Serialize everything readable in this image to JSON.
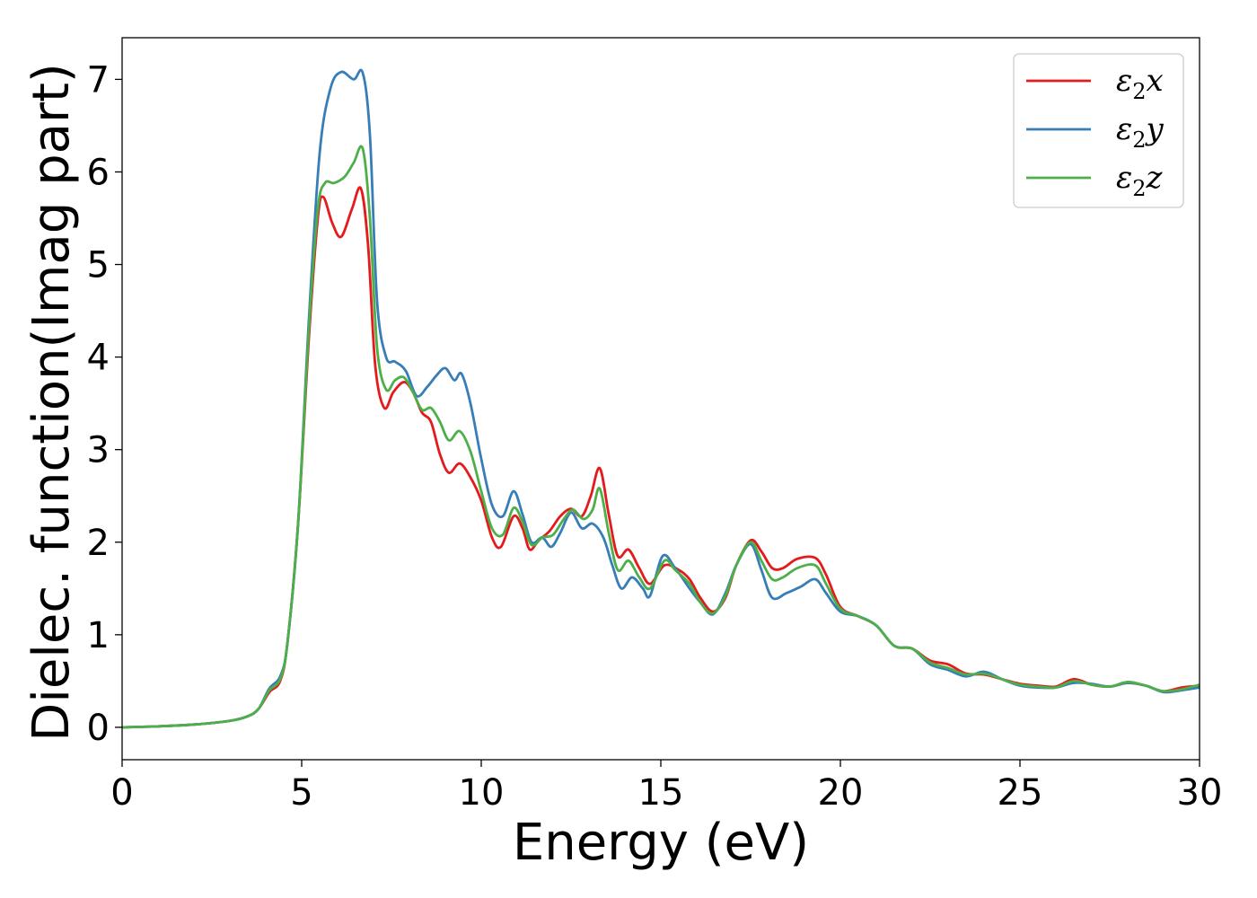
{
  "chart_data": {
    "type": "line",
    "xlabel": "Energy (eV)",
    "ylabel": "Dielec. function(Imag part)",
    "xlim": [
      0,
      30
    ],
    "ylim": [
      -0.35,
      7.45
    ],
    "xticks": [
      0,
      5,
      10,
      15,
      20,
      25,
      30
    ],
    "yticks": [
      0,
      1,
      2,
      3,
      4,
      5,
      6,
      7
    ],
    "xtick_labels": [
      "0",
      "5",
      "10",
      "15",
      "20",
      "25",
      "30"
    ],
    "ytick_labels": [
      "0",
      "1",
      "2",
      "3",
      "4",
      "5",
      "6",
      "7"
    ],
    "grid": false,
    "legend_position": "top-right",
    "series": [
      {
        "name": "ε₂x",
        "legend": {
          "base": "ε",
          "sub": "2",
          "suffix": "x"
        },
        "color": "#e41a1c",
        "points": [
          [
            0,
            0
          ],
          [
            1,
            0.01
          ],
          [
            2,
            0.03
          ],
          [
            3,
            0.07
          ],
          [
            3.5,
            0.12
          ],
          [
            3.8,
            0.2
          ],
          [
            4.1,
            0.38
          ],
          [
            4.4,
            0.5
          ],
          [
            4.6,
            0.9
          ],
          [
            4.9,
            2.2
          ],
          [
            5.2,
            4.2
          ],
          [
            5.45,
            5.5
          ],
          [
            5.6,
            5.73
          ],
          [
            5.85,
            5.45
          ],
          [
            6.1,
            5.3
          ],
          [
            6.4,
            5.6
          ],
          [
            6.65,
            5.82
          ],
          [
            6.85,
            5.2
          ],
          [
            7.05,
            3.9
          ],
          [
            7.3,
            3.45
          ],
          [
            7.55,
            3.62
          ],
          [
            7.85,
            3.73
          ],
          [
            8.1,
            3.62
          ],
          [
            8.35,
            3.4
          ],
          [
            8.6,
            3.3
          ],
          [
            8.85,
            2.95
          ],
          [
            9.1,
            2.75
          ],
          [
            9.4,
            2.85
          ],
          [
            9.7,
            2.7
          ],
          [
            10,
            2.45
          ],
          [
            10.3,
            2.05
          ],
          [
            10.55,
            1.95
          ],
          [
            10.9,
            2.28
          ],
          [
            11.15,
            2.15
          ],
          [
            11.35,
            1.92
          ],
          [
            11.6,
            2.02
          ],
          [
            11.9,
            2.12
          ],
          [
            12.2,
            2.28
          ],
          [
            12.5,
            2.36
          ],
          [
            12.8,
            2.28
          ],
          [
            13.05,
            2.5
          ],
          [
            13.3,
            2.8
          ],
          [
            13.55,
            2.3
          ],
          [
            13.8,
            1.85
          ],
          [
            14.1,
            1.92
          ],
          [
            14.4,
            1.72
          ],
          [
            14.7,
            1.55
          ],
          [
            15.1,
            1.75
          ],
          [
            15.5,
            1.7
          ],
          [
            15.8,
            1.6
          ],
          [
            16.1,
            1.4
          ],
          [
            16.45,
            1.25
          ],
          [
            16.8,
            1.4
          ],
          [
            17.1,
            1.75
          ],
          [
            17.5,
            2.02
          ],
          [
            17.8,
            1.9
          ],
          [
            18.1,
            1.72
          ],
          [
            18.4,
            1.72
          ],
          [
            18.8,
            1.82
          ],
          [
            19.3,
            1.83
          ],
          [
            19.6,
            1.65
          ],
          [
            20,
            1.3
          ],
          [
            20.5,
            1.2
          ],
          [
            21,
            1.1
          ],
          [
            21.5,
            0.88
          ],
          [
            22,
            0.85
          ],
          [
            22.5,
            0.72
          ],
          [
            23,
            0.68
          ],
          [
            23.5,
            0.58
          ],
          [
            24,
            0.57
          ],
          [
            24.5,
            0.52
          ],
          [
            25,
            0.47
          ],
          [
            25.5,
            0.45
          ],
          [
            26,
            0.44
          ],
          [
            26.5,
            0.52
          ],
          [
            27,
            0.46
          ],
          [
            27.5,
            0.44
          ],
          [
            28,
            0.48
          ],
          [
            28.5,
            0.45
          ],
          [
            29,
            0.39
          ],
          [
            29.5,
            0.43
          ],
          [
            30,
            0.45
          ]
        ]
      },
      {
        "name": "ε₂y",
        "legend": {
          "base": "ε",
          "sub": "2",
          "suffix": "y"
        },
        "color": "#377eb8",
        "points": [
          [
            0,
            0
          ],
          [
            1,
            0.01
          ],
          [
            2,
            0.03
          ],
          [
            3,
            0.07
          ],
          [
            3.5,
            0.12
          ],
          [
            3.8,
            0.2
          ],
          [
            4.1,
            0.42
          ],
          [
            4.4,
            0.55
          ],
          [
            4.6,
            0.9
          ],
          [
            4.9,
            2.2
          ],
          [
            5.2,
            4.4
          ],
          [
            5.5,
            6.2
          ],
          [
            5.8,
            6.9
          ],
          [
            6.1,
            7.08
          ],
          [
            6.45,
            7.0
          ],
          [
            6.7,
            7.07
          ],
          [
            6.9,
            6.4
          ],
          [
            7.1,
            4.6
          ],
          [
            7.35,
            4.0
          ],
          [
            7.6,
            3.95
          ],
          [
            7.9,
            3.85
          ],
          [
            8.2,
            3.58
          ],
          [
            8.5,
            3.68
          ],
          [
            8.75,
            3.8
          ],
          [
            9.0,
            3.88
          ],
          [
            9.25,
            3.75
          ],
          [
            9.45,
            3.82
          ],
          [
            9.7,
            3.5
          ],
          [
            10,
            2.9
          ],
          [
            10.3,
            2.4
          ],
          [
            10.6,
            2.28
          ],
          [
            10.9,
            2.55
          ],
          [
            11.15,
            2.3
          ],
          [
            11.4,
            2.0
          ],
          [
            11.7,
            2.05
          ],
          [
            11.95,
            1.95
          ],
          [
            12.2,
            2.1
          ],
          [
            12.5,
            2.32
          ],
          [
            12.8,
            2.15
          ],
          [
            13.1,
            2.2
          ],
          [
            13.4,
            2.05
          ],
          [
            13.65,
            1.75
          ],
          [
            13.9,
            1.5
          ],
          [
            14.2,
            1.62
          ],
          [
            14.5,
            1.5
          ],
          [
            14.7,
            1.42
          ],
          [
            15.05,
            1.85
          ],
          [
            15.4,
            1.72
          ],
          [
            15.8,
            1.5
          ],
          [
            16.1,
            1.35
          ],
          [
            16.45,
            1.22
          ],
          [
            16.8,
            1.45
          ],
          [
            17.1,
            1.75
          ],
          [
            17.5,
            1.98
          ],
          [
            17.8,
            1.7
          ],
          [
            18.1,
            1.4
          ],
          [
            18.5,
            1.45
          ],
          [
            18.9,
            1.52
          ],
          [
            19.3,
            1.6
          ],
          [
            19.6,
            1.45
          ],
          [
            20,
            1.25
          ],
          [
            20.5,
            1.2
          ],
          [
            21,
            1.1
          ],
          [
            21.5,
            0.88
          ],
          [
            22,
            0.85
          ],
          [
            22.5,
            0.68
          ],
          [
            23,
            0.62
          ],
          [
            23.5,
            0.55
          ],
          [
            24,
            0.6
          ],
          [
            24.5,
            0.52
          ],
          [
            25,
            0.45
          ],
          [
            25.5,
            0.43
          ],
          [
            26,
            0.43
          ],
          [
            26.5,
            0.48
          ],
          [
            27,
            0.47
          ],
          [
            27.5,
            0.44
          ],
          [
            28,
            0.48
          ],
          [
            28.5,
            0.45
          ],
          [
            29,
            0.38
          ],
          [
            29.5,
            0.4
          ],
          [
            30,
            0.43
          ]
        ]
      },
      {
        "name": "ε₂z",
        "legend": {
          "base": "ε",
          "sub": "2",
          "suffix": "z"
        },
        "color": "#4daf4a",
        "points": [
          [
            0,
            0
          ],
          [
            1,
            0.01
          ],
          [
            2,
            0.03
          ],
          [
            3,
            0.07
          ],
          [
            3.5,
            0.12
          ],
          [
            3.8,
            0.2
          ],
          [
            4.1,
            0.4
          ],
          [
            4.4,
            0.52
          ],
          [
            4.6,
            0.9
          ],
          [
            4.9,
            2.2
          ],
          [
            5.2,
            4.3
          ],
          [
            5.45,
            5.6
          ],
          [
            5.65,
            5.88
          ],
          [
            5.9,
            5.88
          ],
          [
            6.2,
            5.95
          ],
          [
            6.45,
            6.1
          ],
          [
            6.7,
            6.25
          ],
          [
            6.9,
            5.5
          ],
          [
            7.1,
            4.1
          ],
          [
            7.35,
            3.65
          ],
          [
            7.6,
            3.75
          ],
          [
            7.85,
            3.78
          ],
          [
            8.1,
            3.62
          ],
          [
            8.35,
            3.43
          ],
          [
            8.6,
            3.45
          ],
          [
            8.85,
            3.3
          ],
          [
            9.1,
            3.1
          ],
          [
            9.4,
            3.2
          ],
          [
            9.7,
            2.98
          ],
          [
            10,
            2.55
          ],
          [
            10.3,
            2.15
          ],
          [
            10.6,
            2.08
          ],
          [
            10.9,
            2.37
          ],
          [
            11.15,
            2.22
          ],
          [
            11.4,
            1.97
          ],
          [
            11.7,
            2.05
          ],
          [
            12,
            2.08
          ],
          [
            12.3,
            2.25
          ],
          [
            12.55,
            2.35
          ],
          [
            12.85,
            2.25
          ],
          [
            13.1,
            2.35
          ],
          [
            13.3,
            2.58
          ],
          [
            13.55,
            2.1
          ],
          [
            13.8,
            1.7
          ],
          [
            14.1,
            1.8
          ],
          [
            14.4,
            1.62
          ],
          [
            14.7,
            1.5
          ],
          [
            15.1,
            1.8
          ],
          [
            15.4,
            1.7
          ],
          [
            15.8,
            1.55
          ],
          [
            16.1,
            1.35
          ],
          [
            16.45,
            1.23
          ],
          [
            16.8,
            1.42
          ],
          [
            17.1,
            1.75
          ],
          [
            17.5,
            2.0
          ],
          [
            17.8,
            1.8
          ],
          [
            18.1,
            1.6
          ],
          [
            18.4,
            1.62
          ],
          [
            18.8,
            1.72
          ],
          [
            19.3,
            1.75
          ],
          [
            19.6,
            1.55
          ],
          [
            20,
            1.28
          ],
          [
            20.5,
            1.2
          ],
          [
            21,
            1.1
          ],
          [
            21.5,
            0.88
          ],
          [
            22,
            0.85
          ],
          [
            22.5,
            0.7
          ],
          [
            23,
            0.64
          ],
          [
            23.5,
            0.57
          ],
          [
            24,
            0.58
          ],
          [
            24.5,
            0.52
          ],
          [
            25,
            0.46
          ],
          [
            25.5,
            0.44
          ],
          [
            26,
            0.43
          ],
          [
            26.5,
            0.5
          ],
          [
            27,
            0.46
          ],
          [
            27.5,
            0.44
          ],
          [
            28,
            0.49
          ],
          [
            28.5,
            0.45
          ],
          [
            29,
            0.39
          ],
          [
            29.5,
            0.41
          ],
          [
            30,
            0.46
          ]
        ]
      }
    ]
  }
}
